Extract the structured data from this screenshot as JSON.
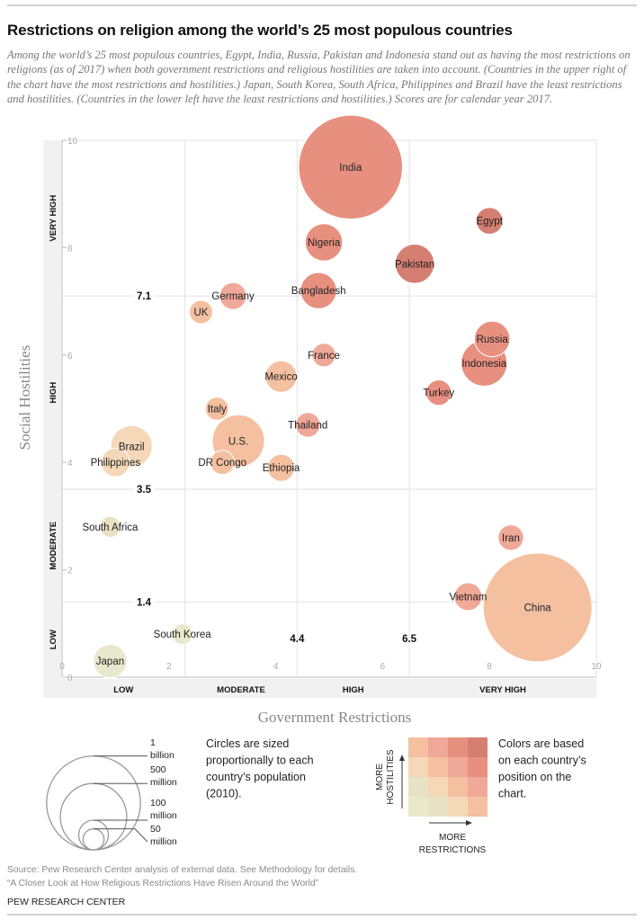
{
  "title": "Restrictions on religion among the world’s 25 most populous countries",
  "subtitle": "Among the world’s 25 most populous countries, Egypt, India, Russia, Pakistan and Indonesia stand out as having the most restrictions on religions (as of 2017) when both government restrictions and religious hostilities are taken into account. (Countries in the upper right of the chart have the most restrictions and hostilities.) Japan, South Korea, South Africa, Philippines and Brazil have the least restrictions and hostilities. (Countries in the lower left have the least restrictions and hostilities.) Scores are for calendar year 2017.",
  "chart_data": {
    "type": "scatter",
    "subtype": "bubble",
    "xlabel": "Government Restrictions",
    "ylabel": "Social Hostilities",
    "xlim": [
      0,
      10
    ],
    "ylim": [
      0,
      10
    ],
    "x_ticks": [
      "0",
      "2",
      "4",
      "6",
      "8",
      "10"
    ],
    "y_ticks": [
      "0",
      "2",
      "4",
      "6",
      "8",
      "10"
    ],
    "x_thresholds": [
      2.3,
      4.4,
      6.5
    ],
    "x_threshold_labels": {
      "4.4": "4.4",
      "6.5": "6.5"
    },
    "y_thresholds": [
      1.4,
      3.5,
      7.1
    ],
    "y_threshold_labels": {
      "1.4": "1.4",
      "3.5": "3.5",
      "7.1": "7.1"
    },
    "x_categories": [
      "LOW",
      "MODERATE",
      "HIGH",
      "VERY HIGH"
    ],
    "y_categories": [
      "LOW",
      "MODERATE",
      "HIGH",
      "VERY HIGH"
    ],
    "size_variable": "population (2010), millions",
    "points": [
      {
        "name": "India",
        "x": 5.4,
        "y": 9.5,
        "pop": 1225
      },
      {
        "name": "Egypt",
        "x": 8.0,
        "y": 8.5,
        "pop": 81
      },
      {
        "name": "Nigeria",
        "x": 4.9,
        "y": 8.1,
        "pop": 158
      },
      {
        "name": "Pakistan",
        "x": 6.6,
        "y": 7.7,
        "pop": 174
      },
      {
        "name": "Bangladesh",
        "x": 4.8,
        "y": 7.2,
        "pop": 149
      },
      {
        "name": "Germany",
        "x": 3.2,
        "y": 7.1,
        "pop": 82
      },
      {
        "name": "UK",
        "x": 2.6,
        "y": 6.8,
        "pop": 62
      },
      {
        "name": "France",
        "x": 4.9,
        "y": 6.0,
        "pop": 63
      },
      {
        "name": "Indonesia",
        "x": 7.9,
        "y": 5.85,
        "pop": 240
      },
      {
        "name": "Russia",
        "x": 8.05,
        "y": 6.3,
        "pop": 143
      },
      {
        "name": "Turkey",
        "x": 7.05,
        "y": 5.3,
        "pop": 73
      },
      {
        "name": "Mexico",
        "x": 4.1,
        "y": 5.6,
        "pop": 113
      },
      {
        "name": "Italy",
        "x": 2.9,
        "y": 5.0,
        "pop": 61
      },
      {
        "name": "Thailand",
        "x": 4.6,
        "y": 4.7,
        "pop": 69
      },
      {
        "name": "U.S.",
        "x": 3.3,
        "y": 4.4,
        "pop": 310
      },
      {
        "name": "Brazil",
        "x": 1.3,
        "y": 4.3,
        "pop": 195
      },
      {
        "name": "Philippines",
        "x": 1.0,
        "y": 4.0,
        "pop": 93
      },
      {
        "name": "DR Congo",
        "x": 3.0,
        "y": 4.0,
        "pop": 66
      },
      {
        "name": "Ethiopia",
        "x": 4.1,
        "y": 3.9,
        "pop": 83
      },
      {
        "name": "South Africa",
        "x": 0.9,
        "y": 2.8,
        "pop": 50
      },
      {
        "name": "South Korea",
        "x": 2.25,
        "y": 0.8,
        "pop": 48
      },
      {
        "name": "Japan",
        "x": 0.9,
        "y": 0.3,
        "pop": 127
      },
      {
        "name": "Iran",
        "x": 8.4,
        "y": 2.6,
        "pop": 74
      },
      {
        "name": "Vietnam",
        "x": 7.6,
        "y": 1.5,
        "pop": 88
      },
      {
        "name": "China",
        "x": 8.9,
        "y": 1.3,
        "pop": 1341
      }
    ],
    "color_grid": [
      [
        "#eae8cc",
        "#e8e2c4",
        "#f5d8b8",
        "#f4c0a0"
      ],
      [
        "#e8e2c4",
        "#f5d8b8",
        "#f4c0a0",
        "#f0a898"
      ],
      [
        "#f5d8b8",
        "#f4c0a0",
        "#f0a898",
        "#e89080"
      ],
      [
        "#f4c0a0",
        "#f0a898",
        "#e89080",
        "#d47f72"
      ]
    ]
  },
  "size_legend": {
    "items": [
      {
        "value": 1000,
        "line1": "1",
        "line2": "billion"
      },
      {
        "value": 500,
        "line1": "500",
        "line2": "million"
      },
      {
        "value": 100,
        "line1": "100",
        "line2": "million"
      },
      {
        "value": 50,
        "line1": "50",
        "line2": "million"
      }
    ],
    "note": [
      "Circles are sized",
      "proportionally to each",
      "country’s population",
      "(2010)."
    ]
  },
  "color_legend": {
    "y_label": [
      "MORE",
      "HOSTILITIES"
    ],
    "x_label": [
      "MORE",
      "RESTRICTIONS"
    ],
    "note": [
      "Colors are based",
      "on each country’s",
      "position on the",
      "chart."
    ]
  },
  "source": "Source: Pew Research Center analysis of external data. See Methodology for details.",
  "report": "“A Closer Look at How Religious Restrictions Have Risen Around the World”",
  "brand": "PEW RESEARCH CENTER"
}
